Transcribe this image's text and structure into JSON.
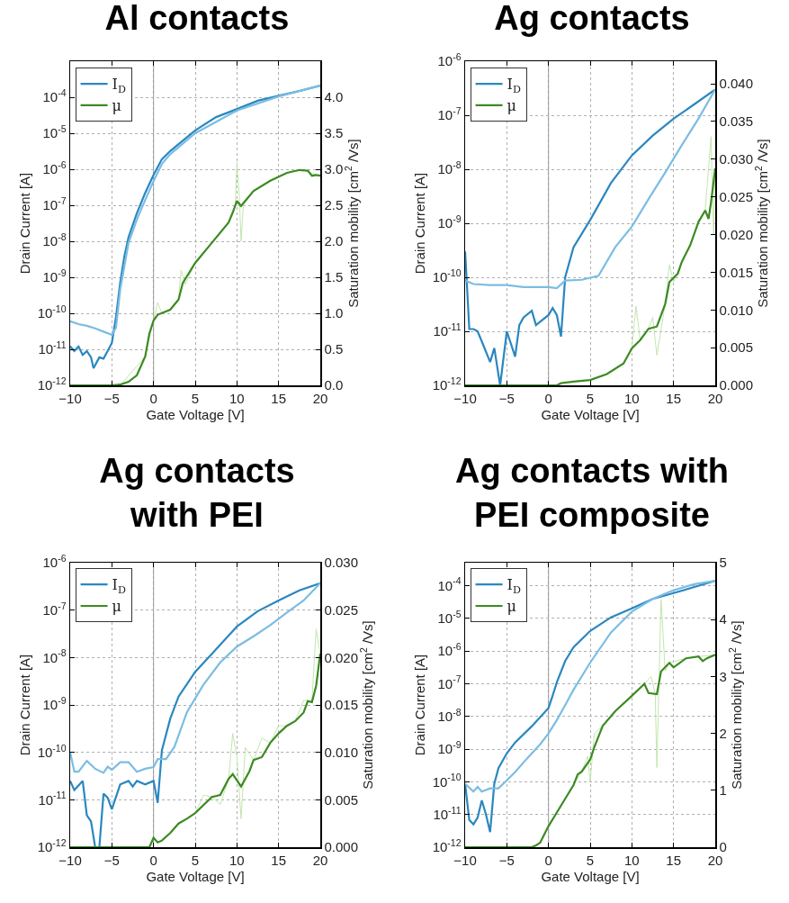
{
  "chart_data": [
    {
      "type": "line",
      "title": "Al contacts",
      "xlabel": "Gate Voltage [V]",
      "ylabel": "Drain Current [A]",
      "y2label": "Saturation mobility [cm$^{2}$ /Vs]",
      "log": "y",
      "grid": true,
      "legend": "top left",
      "xlim": [
        -10,
        20
      ],
      "xticks": [
        -10,
        -5,
        0,
        5,
        10,
        15,
        20
      ],
      "ylim": [
        1e-12,
        0.001
      ],
      "yticks": [
        {
          "value": 1e-12,
          "label": "10$^{-12}$"
        },
        {
          "value": 1e-11,
          "label": "10$^{-11}$"
        },
        {
          "value": 1e-10,
          "label": "10$^{-10}$"
        },
        {
          "value": 1e-09,
          "label": "10$^{-9}$"
        },
        {
          "value": 1e-08,
          "label": "10$^{-8}$"
        },
        {
          "value": 1e-07,
          "label": "10$^{-7}$"
        },
        {
          "value": 1e-06,
          "label": "10$^{-6}$"
        },
        {
          "value": 1e-05,
          "label": "10$^{-5}$"
        },
        {
          "value": 0.0001,
          "label": "10$^{-4}$"
        }
      ],
      "y2lim": [
        0,
        4.5
      ],
      "y2ticks": [
        {
          "value": 0,
          "label": "0.0"
        },
        0.5,
        {
          "value": 1,
          "label": "1.0"
        },
        1.5,
        {
          "value": 2,
          "label": "2.0"
        },
        2.5,
        {
          "value": 3,
          "label": "3.0"
        },
        3.5,
        {
          "value": 4,
          "label": "4.0"
        }
      ],
      "ref_lines": [
        {
          "axis": "x",
          "value": 0,
          "color": "#888888"
        }
      ],
      "series": [
        {
          "name": "I$_{D}$",
          "color": "#2a87bf",
          "x": [
            -10,
            -9.5,
            -9,
            -8.5,
            -8,
            -7.5,
            -7.2,
            -6.5,
            -6,
            -5.5,
            -5,
            -4.5,
            -4,
            -3.5,
            -3,
            -2,
            -1,
            0,
            1,
            2,
            3,
            5,
            7.5,
            10,
            12.5,
            15,
            17.5,
            20
          ],
          "values": [
            1.2e-11,
            9e-12,
            1.2e-11,
            7e-12,
            9e-12,
            6e-12,
            3e-12,
            6e-12,
            5.5e-12,
            9e-12,
            1.5e-11,
            8e-11,
            7e-10,
            3.8e-09,
            1.3e-08,
            6e-08,
            2.2e-07,
            7e-07,
            1.9e-06,
            3.2e-06,
            5e-06,
            1.2e-05,
            2.8e-05,
            4.7e-05,
            8e-05,
            0.00011,
            0.00015,
            0.00021
          ]
        },
        {
          "color": "#7bbde2",
          "x": [
            -10,
            -9,
            -8,
            -7,
            -6,
            -5.5,
            -5,
            -4.5,
            -4,
            -3,
            -2,
            -1,
            0,
            1,
            2,
            5,
            10,
            15,
            20
          ],
          "values": [
            6e-11,
            5e-11,
            4.5e-11,
            3.8e-11,
            3.1e-11,
            2.8e-11,
            2.5e-11,
            4e-11,
            4.5e-10,
            9e-09,
            4e-08,
            1.4e-07,
            4.7e-07,
            1.4e-06,
            2.6e-06,
            1e-05,
            4.3e-05,
            0.000105,
            0.00021
          ]
        },
        {
          "color": "#c3e6ae",
          "axis": "y2",
          "x": [
            -10,
            -4,
            -1,
            0,
            0.5,
            1,
            2,
            3,
            3.3,
            3.8,
            5,
            7,
            9,
            9.8,
            10,
            10.3,
            10.5,
            10.8,
            12,
            14,
            16,
            18,
            20
          ],
          "values": [
            0,
            0,
            0.4,
            0.9,
            1.15,
            1.0,
            1.05,
            1.2,
            1.6,
            1.4,
            1.7,
            1.98,
            2.26,
            2.5,
            3.1,
            2.6,
            2.0,
            2.55,
            2.7,
            2.84,
            2.95,
            2.99,
            2.9
          ]
        },
        {
          "name": "μ",
          "color": "#3c8a22",
          "axis": "y2",
          "x": [
            -10,
            -5,
            -4,
            -3,
            -2,
            -1,
            -0.5,
            0,
            0.5,
            2,
            3,
            3.5,
            5,
            7,
            9,
            9.5,
            10,
            10.5,
            11,
            12,
            14,
            16,
            17.5,
            18.5,
            19,
            19.5,
            20
          ],
          "values": [
            0,
            0,
            0.01,
            0.05,
            0.14,
            0.4,
            0.72,
            0.9,
            0.98,
            1.05,
            1.19,
            1.42,
            1.7,
            1.98,
            2.26,
            2.4,
            2.56,
            2.49,
            2.56,
            2.7,
            2.84,
            2.95,
            2.99,
            2.98,
            2.91,
            2.92,
            2.91
          ]
        }
      ]
    },
    {
      "type": "line",
      "title": "Ag contacts",
      "xlabel": "Gate Voltage [V]",
      "ylabel": "Drain Current [A]",
      "y2label": "Saturation mobility [cm$^{2}$ /Vs]",
      "log": "y",
      "grid": true,
      "legend": "top left",
      "xlim": [
        -10,
        20
      ],
      "xticks": [
        -10,
        -5,
        0,
        5,
        10,
        15,
        20
      ],
      "ylim": [
        1e-12,
        1e-06
      ],
      "yticks": [
        {
          "value": 1e-12,
          "label": "10$^{-12}$"
        },
        {
          "value": 1e-11,
          "label": "10$^{-11}$"
        },
        {
          "value": 1e-10,
          "label": "10$^{-10}$"
        },
        {
          "value": 1e-09,
          "label": "10$^{-9}$"
        },
        {
          "value": 1e-08,
          "label": "10$^{-8}$"
        },
        {
          "value": 1e-07,
          "label": "10$^{-7}$"
        },
        {
          "value": 1e-06,
          "label": "10$^{-6}$"
        }
      ],
      "y2lim": [
        0,
        0.043
      ],
      "y2ticks": [
        {
          "value": 0,
          "label": "0.000"
        },
        0.005,
        {
          "value": 0.01,
          "label": "0.010"
        },
        0.015,
        {
          "value": 0.02,
          "label": "0.020"
        },
        0.025,
        {
          "value": 0.03,
          "label": "0.030"
        },
        0.035,
        {
          "value": 0.04,
          "label": "0.040"
        }
      ],
      "ref_lines": [
        {
          "axis": "x",
          "value": 0,
          "color": "#888888"
        }
      ],
      "series": [
        {
          "name": "I$_{D}$",
          "color": "#2a87bf",
          "x": [
            -10,
            -9.5,
            -9,
            -8.5,
            -8,
            -7,
            -6.5,
            -5.8,
            -5,
            -4,
            -3.5,
            -3,
            -2,
            -1.5,
            -1,
            0,
            0.5,
            1,
            1.5,
            2,
            3,
            5,
            7.5,
            10,
            12.5,
            15,
            17.5,
            20
          ],
          "values": [
            3e-10,
            1.1e-11,
            1.1e-11,
            1e-11,
            6.5e-12,
            2.7e-12,
            4.9e-12,
            1e-12,
            1e-11,
            3.4e-12,
            1.3e-11,
            1.8e-11,
            2.4e-11,
            1.3e-11,
            1.5e-11,
            2e-11,
            2.7e-11,
            2e-11,
            8e-12,
            1e-10,
            3.6e-10,
            1.15e-09,
            5.6e-09,
            1.8e-08,
            4.2e-08,
            8.6e-08,
            1.6e-07,
            3e-07
          ]
        },
        {
          "color": "#7bbde2",
          "x": [
            -10,
            -9,
            -7,
            -5,
            -3,
            0,
            1,
            2,
            4,
            6,
            8,
            10,
            12,
            14,
            16,
            18,
            20
          ],
          "values": [
            8.7e-11,
            7.5e-11,
            7.2e-11,
            7.2e-11,
            6.6e-11,
            6.6e-11,
            6.3e-11,
            8.7e-11,
            9e-11,
            1.07e-10,
            3.6e-10,
            8.7e-10,
            2.8e-09,
            8.7e-09,
            2.8e-08,
            8.7e-08,
            3e-07
          ]
        },
        {
          "color": "#c3e6ae",
          "axis": "y2",
          "x": [
            -10,
            1,
            3,
            5,
            7,
            9,
            10,
            10.5,
            11,
            12,
            12.5,
            13,
            14,
            14.5,
            15,
            16,
            17,
            18,
            18.8,
            19.5,
            19.8,
            20
          ],
          "values": [
            0,
            0,
            0.0005,
            0.0007,
            0.0015,
            0.0029,
            0.0049,
            0.0105,
            0.006,
            0.0075,
            0.009,
            0.004,
            0.0108,
            0.016,
            0.0137,
            0.0164,
            0.0186,
            0.0217,
            0.0232,
            0.033,
            0.02,
            0.0288
          ]
        },
        {
          "name": "μ",
          "color": "#3c8a22",
          "axis": "y2",
          "x": [
            -10,
            1,
            1.5,
            3,
            5,
            7,
            9,
            10,
            11,
            12,
            13,
            14,
            14.5,
            15.5,
            16,
            17,
            18,
            18.8,
            19.2,
            19.5,
            20
          ],
          "values": [
            0,
            0,
            0.0003,
            0.0005,
            0.0007,
            0.0015,
            0.0029,
            0.0049,
            0.006,
            0.0075,
            0.0078,
            0.0108,
            0.0137,
            0.0148,
            0.0164,
            0.0186,
            0.0217,
            0.0232,
            0.0221,
            0.0243,
            0.0288
          ]
        }
      ]
    },
    {
      "type": "line",
      "title": "Ag contacts\nwith PEI",
      "xlabel": "Gate Voltage [V]",
      "ylabel": "Drain Current [A]",
      "y2label": "Saturation mobility [cm$^{2}$ /Vs]",
      "log": "y",
      "grid": true,
      "legend": "top left",
      "xlim": [
        -10,
        20
      ],
      "xticks": [
        -10,
        -5,
        0,
        5,
        10,
        15,
        20
      ],
      "ylim": [
        1e-12,
        1e-06
      ],
      "yticks": [
        {
          "value": 1e-12,
          "label": "10$^{-12}$"
        },
        {
          "value": 1e-11,
          "label": "10$^{-11}$"
        },
        {
          "value": 1e-10,
          "label": "10$^{-10}$"
        },
        {
          "value": 1e-09,
          "label": "10$^{-9}$"
        },
        {
          "value": 1e-08,
          "label": "10$^{-8}$"
        },
        {
          "value": 1e-07,
          "label": "10$^{-7}$"
        },
        {
          "value": 1e-06,
          "label": "10$^{-6}$"
        }
      ],
      "y2lim": [
        0,
        0.03
      ],
      "y2ticks": [
        {
          "value": 0,
          "label": "0.000"
        },
        0.005,
        {
          "value": 0.01,
          "label": "0.010"
        },
        0.015,
        {
          "value": 0.02,
          "label": "0.020"
        },
        0.025,
        {
          "value": 0.03,
          "label": "0.030"
        }
      ],
      "ref_lines": [
        {
          "axis": "x",
          "value": 0,
          "color": "#888888"
        }
      ],
      "series": [
        {
          "name": "I$_{D}$",
          "color": "#2a87bf",
          "x": [
            -10,
            -9.5,
            -9,
            -8.5,
            -8,
            -7.5,
            -7,
            -6.5,
            -6,
            -5.5,
            -5,
            -4,
            -3,
            -2.5,
            -2,
            -1,
            0,
            0.5,
            1,
            2,
            3,
            5,
            7,
            10,
            12.5,
            15,
            17.5,
            20
          ],
          "values": [
            2.5e-11,
            1.6e-11,
            2e-11,
            2.5e-11,
            4.7e-12,
            3.5e-12,
            1e-12,
            1e-12,
            1.35e-11,
            1.1e-11,
            6.3e-12,
            2.1e-11,
            2.5e-11,
            1.9e-11,
            2.5e-11,
            2.1e-11,
            2.5e-11,
            8.6e-12,
            1.1e-10,
            5.1e-10,
            1.5e-09,
            5e-09,
            1.2e-08,
            4.5e-08,
            9.5e-08,
            1.6e-07,
            2.6e-07,
            3.7e-07
          ]
        },
        {
          "color": "#7bbde2",
          "x": [
            -10,
            -9.5,
            -9,
            -8,
            -7,
            -6,
            -5.5,
            -5,
            -4,
            -3,
            -2,
            -1,
            0,
            0.5,
            1.5,
            2.5,
            4,
            6,
            8,
            10,
            12,
            14,
            16,
            18,
            20
          ],
          "values": [
            1e-10,
            3.9e-11,
            3.9e-11,
            6.6e-11,
            4.5e-11,
            3.7e-11,
            5e-11,
            4.3e-11,
            6.2e-11,
            6.2e-11,
            3.9e-11,
            4.5e-11,
            4.9e-11,
            7.2e-11,
            7.2e-11,
            1.3e-10,
            7e-10,
            2.7e-09,
            7.9e-09,
            1.7e-08,
            2.8e-08,
            4.8e-08,
            8.9e-08,
            1.6e-07,
            3.7e-07
          ]
        },
        {
          "color": "#c3e6ae",
          "axis": "y2",
          "x": [
            -10,
            -0.5,
            0,
            0.5,
            1,
            2,
            3,
            4,
            5,
            6,
            7,
            8,
            9,
            9.5,
            10,
            10.5,
            11,
            12,
            13,
            14,
            15,
            16,
            17,
            18,
            19,
            19.5,
            20
          ],
          "values": [
            0,
            0,
            0.001,
            0.0005,
            0.0007,
            0.0015,
            0.0025,
            0.003,
            0.0036,
            0.0055,
            0.0053,
            0.0045,
            0.0072,
            0.012,
            0.0095,
            0.003,
            0.0105,
            0.0092,
            0.0115,
            0.011,
            0.0128,
            0.0128,
            0.0133,
            0.0155,
            0.0154,
            0.023,
            0.0204
          ]
        },
        {
          "name": "μ",
          "color": "#3c8a22",
          "axis": "y2",
          "x": [
            -10,
            -0.5,
            0,
            0.5,
            1,
            2,
            3,
            4,
            5,
            7,
            8,
            9,
            9.5,
            10.5,
            11.5,
            12,
            13,
            14,
            15,
            16,
            17,
            18,
            18.5,
            19,
            19.5,
            20
          ],
          "values": [
            0,
            0,
            0.001,
            0.0005,
            0.0007,
            0.0015,
            0.0025,
            0.003,
            0.0036,
            0.0053,
            0.0055,
            0.0072,
            0.0077,
            0.0064,
            0.008,
            0.0092,
            0.0095,
            0.011,
            0.012,
            0.0128,
            0.0133,
            0.0142,
            0.0154,
            0.0153,
            0.017,
            0.0204
          ]
        }
      ]
    },
    {
      "type": "line",
      "title": "Ag contacts with\nPEI composite",
      "xlabel": "Gate Voltage [V]",
      "ylabel": "Drain Current [A]",
      "y2label": "Saturation mobility [cm$^{2}$ /Vs]",
      "log": "y",
      "grid": true,
      "legend": "top left",
      "xlim": [
        -10,
        20
      ],
      "xticks": [
        -10,
        -5,
        0,
        5,
        10,
        15,
        20
      ],
      "ylim": [
        1e-12,
        0.0005
      ],
      "yticks": [
        {
          "value": 1e-12,
          "label": "10$^{-12}$"
        },
        {
          "value": 1e-11,
          "label": "10$^{-11}$"
        },
        {
          "value": 1e-10,
          "label": "10$^{-10}$"
        },
        {
          "value": 1e-09,
          "label": "10$^{-9}$"
        },
        {
          "value": 1e-08,
          "label": "10$^{-8}$"
        },
        {
          "value": 1e-07,
          "label": "10$^{-7}$"
        },
        {
          "value": 1e-06,
          "label": "10$^{-6}$"
        },
        {
          "value": 1e-05,
          "label": "10$^{-5}$"
        },
        {
          "value": 0.0001,
          "label": "10$^{-4}$"
        }
      ],
      "y2lim": [
        0,
        5
      ],
      "y2ticks": [
        0,
        1,
        2,
        3,
        4,
        5
      ],
      "ref_lines": [
        {
          "axis": "x",
          "value": 0,
          "color": "#888888"
        }
      ],
      "series": [
        {
          "name": "I$_{D}$",
          "color": "#2a87bf",
          "x": [
            -10,
            -9.5,
            -9,
            -8.5,
            -8,
            -7.5,
            -7,
            -6.5,
            -6,
            -5,
            -4,
            -2,
            0,
            0.5,
            1,
            2,
            3,
            5,
            7.5,
            10,
            12.5,
            15,
            17.5,
            20
          ],
          "values": [
            8.7e-11,
            6.8e-12,
            5e-12,
            8e-12,
            2.7e-11,
            1e-11,
            2.9e-12,
            8.7e-11,
            2.6e-10,
            7.4e-10,
            1.6e-09,
            5e-09,
            1.8e-08,
            4.3e-08,
            1.1e-07,
            4.9e-07,
            1.3e-06,
            4.1e-06,
            1.07e-05,
            2e-05,
            3.9e-05,
            5.9e-05,
            9e-05,
            0.00014
          ]
        },
        {
          "color": "#7bbde2",
          "x": [
            -10,
            -9,
            -8.5,
            -8,
            -7,
            -6,
            -5,
            -4,
            -3,
            -2,
            -1,
            0,
            1,
            2,
            3,
            5,
            7.5,
            10,
            12.5,
            15,
            17.5,
            20
          ],
          "values": [
            8.7e-11,
            5e-11,
            7e-11,
            5e-11,
            6.3e-11,
            6.3e-11,
            1.1e-10,
            2e-10,
            3.9e-10,
            7.4e-10,
            1.4e-09,
            3e-09,
            7.7e-09,
            2.2e-08,
            6.5e-08,
            4.4e-07,
            3.7e-06,
            1.6e-05,
            3.9e-05,
            7.2e-05,
            0.00011,
            0.00014
          ]
        },
        {
          "color": "#c3e6ae",
          "axis": "y2",
          "x": [
            -10,
            -2,
            -1,
            0,
            1,
            2,
            3,
            4,
            4.7,
            5,
            5.5,
            6.5,
            8,
            10,
            11.5,
            12.3,
            12.8,
            13,
            13.5,
            14,
            14.5,
            16.5,
            18,
            20
          ],
          "values": [
            0,
            0,
            0.08,
            0.37,
            0.61,
            0.85,
            1.09,
            1.33,
            1.6,
            1.15,
            2.0,
            2.13,
            2.39,
            2.66,
            2.87,
            3.0,
            2.7,
            1.4,
            4.35,
            3.1,
            3.24,
            3.32,
            3.35,
            3.38
          ]
        },
        {
          "name": "μ",
          "color": "#3c8a22",
          "axis": "y2",
          "x": [
            -10,
            -2,
            -1.5,
            -1,
            0,
            1,
            2,
            3,
            3.5,
            4,
            5,
            5.5,
            6.5,
            8,
            10,
            11.5,
            12,
            13,
            13.5,
            14.5,
            15,
            16.5,
            18,
            18.5,
            19,
            20
          ],
          "values": [
            0,
            0,
            0.03,
            0.08,
            0.37,
            0.61,
            0.85,
            1.09,
            1.28,
            1.33,
            1.54,
            1.76,
            2.13,
            2.39,
            2.66,
            2.87,
            2.71,
            2.69,
            3.09,
            3.24,
            3.16,
            3.32,
            3.35,
            3.27,
            3.32,
            3.38
          ]
        }
      ]
    }
  ]
}
